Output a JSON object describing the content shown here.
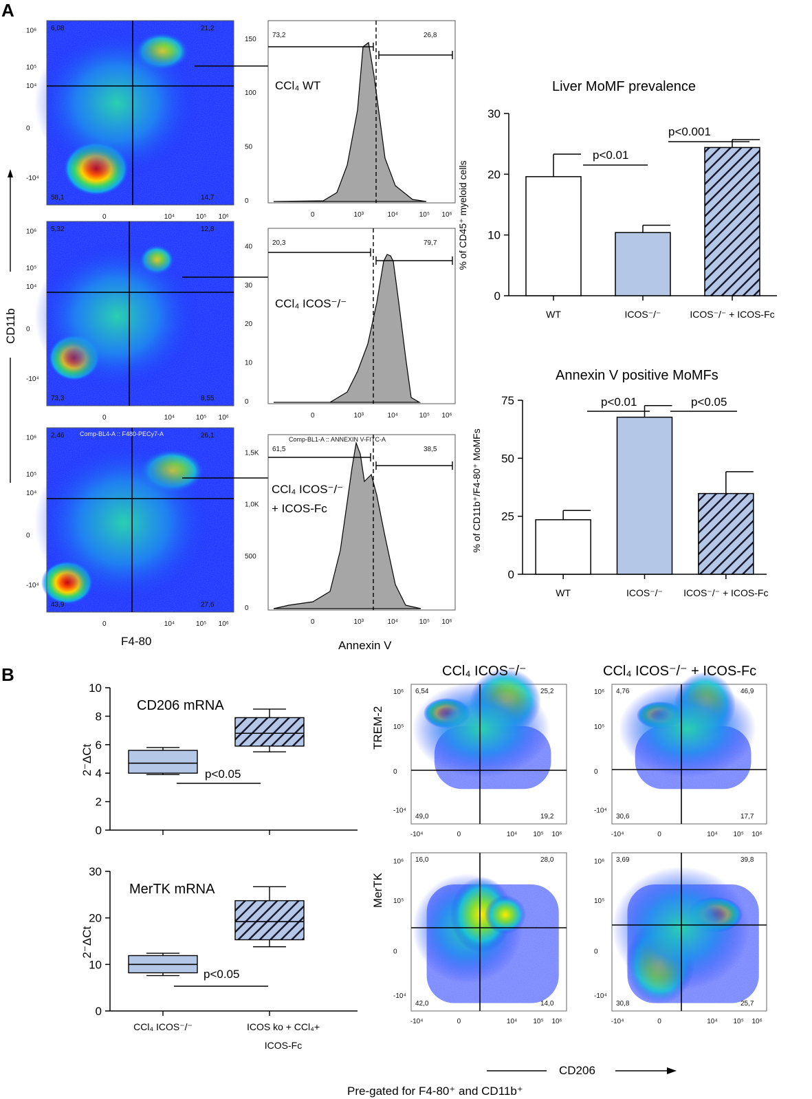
{
  "panel_labels": {
    "a": "A",
    "b": "B"
  },
  "flow_axes": {
    "y": "CD11b",
    "x": "F4-80",
    "hist_x": "Annexin V"
  },
  "dot_ticks": [
    "0",
    "10⁴",
    "10⁵",
    "10⁶",
    "-10⁴"
  ],
  "hist_ticks": [
    "0",
    "10³",
    "10⁴",
    "10⁵",
    "10⁶"
  ],
  "flow_rows": [
    {
      "condition": "CCl₄ WT",
      "q_ul": "6,08",
      "q_ur": "21,2",
      "q_ll": "58,1",
      "q_lr": "14,7",
      "hist_left": "73,2",
      "hist_right": "26,8",
      "hist_yticks": [
        "0",
        "50",
        "100",
        "150"
      ],
      "dot_header": "",
      "hist_header": ""
    },
    {
      "condition": "CCl₄ ICOS⁻/⁻",
      "q_ul": "5,32",
      "q_ur": "12,8",
      "q_ll": "73,3",
      "q_lr": "8,55",
      "hist_left": "20,3",
      "hist_right": "79,7",
      "hist_yticks": [
        "0",
        "10",
        "20",
        "30",
        "40"
      ],
      "dot_header": "",
      "hist_header": ""
    },
    {
      "condition": "CCl₄ ICOS⁻/⁻",
      "condition_line2": "+ ICOS-Fc",
      "q_ul": "2,46",
      "q_ur": "26,1",
      "q_ll": "43,9",
      "q_lr": "27,6",
      "hist_left": "61,5",
      "hist_right": "38,5",
      "hist_yticks": [
        "0",
        "500",
        "1,0K",
        "1,5K"
      ],
      "dot_header": "Comp-BL4-A :: F480-PECy7-A",
      "hist_header": "Comp-BL1-A :: ANNEXIN V-FITC-A"
    }
  ],
  "chart_data": [
    {
      "type": "bar",
      "title": "Liver MoMF prevalence",
      "ylabel": "% of CD45⁺ myeloid cells",
      "categories": [
        "WT",
        "ICOS⁻/⁻",
        "ICOS⁻/⁻ + ICOS-Fc"
      ],
      "values": [
        19.6,
        10.4,
        24.4
      ],
      "errors": [
        3.7,
        1.2,
        1.3
      ],
      "ylim": [
        0,
        30
      ],
      "yticks": [
        "0",
        "10",
        "20",
        "30"
      ],
      "annotations": [
        "p<0.01",
        "p<0.001"
      ]
    },
    {
      "type": "bar",
      "title": "Annexin V positive MoMFs",
      "ylabel": "% of CD11b⁺/F4-80⁺ MoMFs",
      "categories": [
        "WT",
        "ICOS⁻/⁻",
        "ICOS⁻/⁻ + ICOS-Fc"
      ],
      "values": [
        23.5,
        67.7,
        34.8
      ],
      "errors": [
        4.0,
        5.0,
        9.4
      ],
      "ylim": [
        0,
        75
      ],
      "yticks": [
        "0",
        "25",
        "50",
        "75"
      ],
      "annotations": [
        "p<0.01",
        "p<0.05"
      ]
    },
    {
      "type": "box",
      "title": "CD206 mRNA",
      "ylabel": "2⁻ΔCt",
      "categories": [
        "CCl₄ ICOS⁻/⁻",
        "ICOS ko + CCl₄+ ICOS-Fc"
      ],
      "boxes": [
        {
          "min": 3.9,
          "q1": 4.0,
          "median": 4.7,
          "q3": 5.6,
          "max": 5.8
        },
        {
          "min": 5.5,
          "q1": 5.9,
          "median": 6.8,
          "q3": 7.9,
          "max": 8.5
        }
      ],
      "ylim": [
        0,
        10
      ],
      "yticks": [
        "0",
        "2",
        "4",
        "6",
        "8",
        "10"
      ],
      "annotation": "p<0.05"
    },
    {
      "type": "box",
      "title": "MerTK mRNA",
      "ylabel": "2⁻ΔCt",
      "categories": [
        "CCl₄ ICOS⁻/⁻",
        "ICOS ko + CCl₄+ ICOS-Fc"
      ],
      "boxes": [
        {
          "min": 7.6,
          "q1": 8.2,
          "median": 10.0,
          "q3": 11.9,
          "max": 12.4
        },
        {
          "min": 13.8,
          "q1": 15.3,
          "median": 19.2,
          "q3": 23.7,
          "max": 26.7
        }
      ],
      "ylim": [
        0,
        30
      ],
      "yticks": [
        "0",
        "10",
        "20",
        "30"
      ],
      "annotation": "p<0.05"
    }
  ],
  "b_flow": {
    "col_titles": [
      "CCl₄ ICOS⁻/⁻",
      "CCl₄ ICOS⁻/⁻ + ICOS-Fc"
    ],
    "row_labels": [
      "TREM-2",
      "MerTK"
    ],
    "x_label": "CD206",
    "footer": "Pre-gated for F4-80⁺ and CD11b⁺",
    "ticks": [
      "-10⁴",
      "0",
      "10⁴",
      "10⁵",
      "10⁶"
    ],
    "plots": [
      {
        "ul": "6,54",
        "ur": "25,2",
        "ll": "49,0",
        "lr": "19,2"
      },
      {
        "ul": "4,76",
        "ur": "46,9",
        "ll": "30,6",
        "lr": "17,7"
      },
      {
        "ul": "16,0",
        "ur": "28,0",
        "ll": "42,0",
        "lr": "14,0"
      },
      {
        "ul": "3,69",
        "ur": "39,8",
        "ll": "30,8",
        "lr": "25,7"
      }
    ]
  },
  "colors": {
    "wt_fill": "#ffffff",
    "icos_fill": "#b4c7e7",
    "stroke": "#1a1a2e",
    "hist_fill": "#a6a6a6"
  }
}
